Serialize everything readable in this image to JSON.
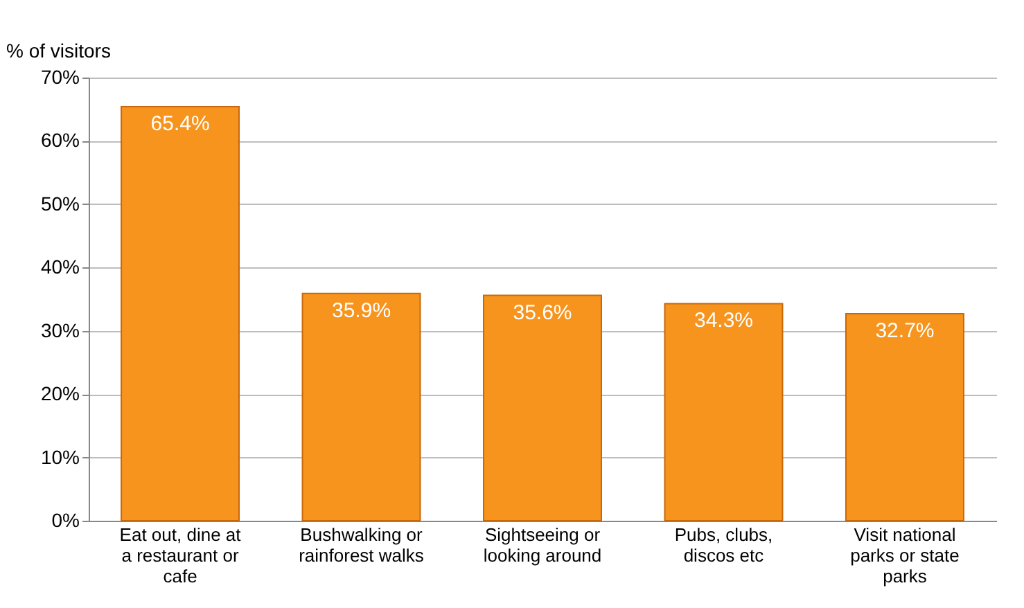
{
  "chart_data": {
    "type": "bar",
    "ylabel": "% of visitors",
    "categories": [
      "Eat out, dine at a restaurant or cafe",
      "Bushwalking or rainforest walks",
      "Sightseeing or looking around",
      "Pubs, clubs, discos etc",
      "Visit national parks or state parks"
    ],
    "values": [
      65.4,
      35.9,
      35.6,
      34.3,
      32.7
    ],
    "value_labels": [
      "65.4%",
      "35.9%",
      "35.6%",
      "34.3%",
      "32.7%"
    ],
    "color": "#f7941d",
    "ylim": [
      0,
      70
    ],
    "yticks": [
      {
        "value": 0,
        "label": "0%"
      },
      {
        "value": 10,
        "label": "10%"
      },
      {
        "value": 20,
        "label": "20%"
      },
      {
        "value": 30,
        "label": "30%"
      },
      {
        "value": 40,
        "label": "40%"
      },
      {
        "value": 50,
        "label": "50%"
      },
      {
        "value": 60,
        "label": "60%"
      },
      {
        "value": 70,
        "label": "70%"
      }
    ],
    "grid": "y"
  }
}
